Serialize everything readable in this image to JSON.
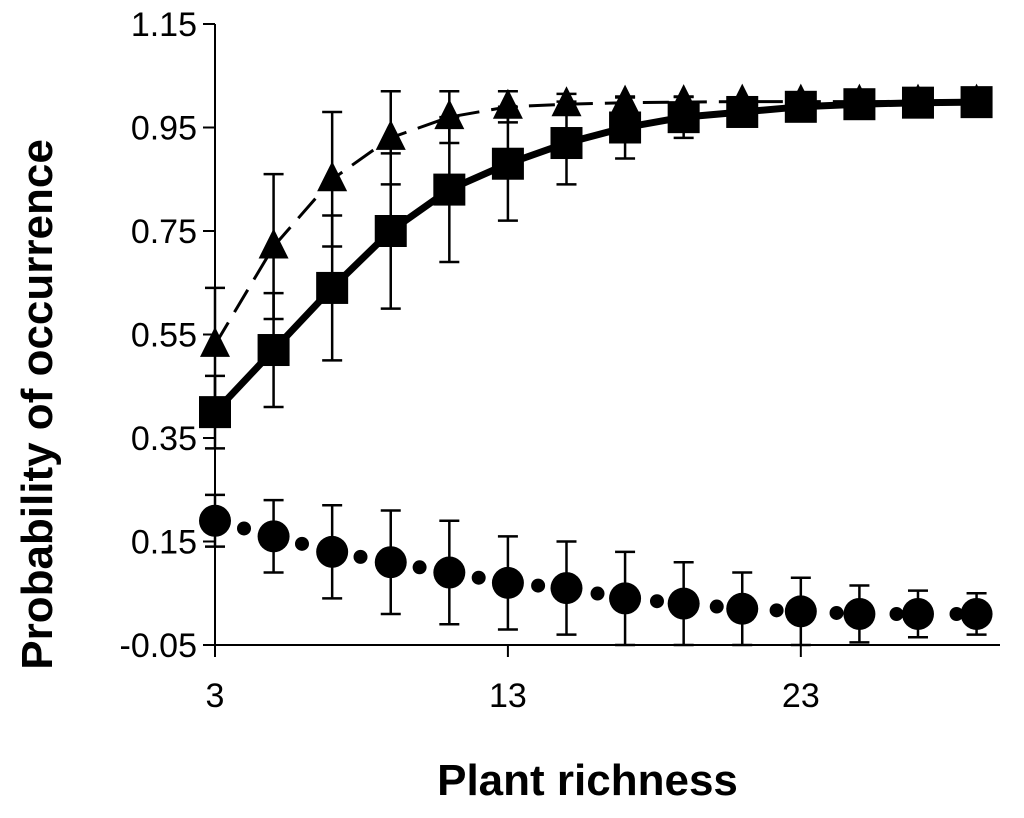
{
  "chart_data": {
    "type": "line",
    "title": "",
    "xlabel": "Plant richness",
    "ylabel": "Probability of occurrence",
    "xlim": [
      3,
      29.8
    ],
    "ylim": [
      -0.05,
      1.15
    ],
    "xticks": [
      3,
      13,
      23
    ],
    "xtick_labels": [
      "3",
      "13",
      "23"
    ],
    "yticks": [
      -0.05,
      0.15,
      0.35,
      0.55,
      0.75,
      0.95,
      1.15
    ],
    "ytick_labels": [
      "-0.05",
      "0.15",
      "0.35",
      "0.55",
      "0.75",
      "0.95",
      "1.15"
    ],
    "x": [
      3,
      5,
      7,
      9,
      11,
      13,
      15,
      17,
      19,
      21,
      23,
      25,
      27,
      29
    ],
    "series": [
      {
        "name": "squares",
        "marker": "square",
        "line": "solid",
        "values": [
          0.4,
          0.52,
          0.64,
          0.75,
          0.83,
          0.88,
          0.92,
          0.95,
          0.97,
          0.98,
          0.99,
          0.995,
          0.998,
          0.999
        ],
        "err_low": [
          0.07,
          0.11,
          0.14,
          0.15,
          0.14,
          0.11,
          0.08,
          0.06,
          0.04,
          0.02,
          0.01,
          0.005,
          0.003,
          0.002
        ],
        "err_high": [
          0.07,
          0.11,
          0.14,
          0.15,
          0.14,
          0.11,
          0.08,
          0.06,
          0.04,
          0.02,
          0.01,
          0.005,
          0.003,
          0.002
        ]
      },
      {
        "name": "triangles",
        "marker": "triangle",
        "line": "dashed",
        "values": [
          0.53,
          0.72,
          0.85,
          0.93,
          0.97,
          0.99,
          0.995,
          0.998,
          0.999,
          1.0,
          1.0,
          1.0,
          1.0,
          1.0
        ],
        "err_low": [
          0.11,
          0.14,
          0.13,
          0.09,
          0.05,
          0.03,
          0.02,
          0.01,
          0.01,
          0.0,
          0.0,
          0.0,
          0.0,
          0.0
        ],
        "err_high": [
          0.11,
          0.14,
          0.13,
          0.09,
          0.05,
          0.03,
          0.02,
          0.01,
          0.01,
          0.0,
          0.0,
          0.0,
          0.0,
          0.0
        ]
      },
      {
        "name": "circles",
        "marker": "circle",
        "line": "dotted",
        "values": [
          0.19,
          0.16,
          0.13,
          0.11,
          0.09,
          0.07,
          0.06,
          0.04,
          0.03,
          0.02,
          0.015,
          0.01,
          0.01,
          0.01
        ],
        "err_low": [
          0.05,
          0.07,
          0.09,
          0.1,
          0.1,
          0.09,
          0.09,
          0.09,
          0.08,
          0.07,
          0.065,
          0.055,
          0.045,
          0.04
        ],
        "err_high": [
          0.05,
          0.07,
          0.09,
          0.1,
          0.1,
          0.09,
          0.09,
          0.09,
          0.08,
          0.07,
          0.065,
          0.055,
          0.045,
          0.04
        ]
      }
    ]
  }
}
